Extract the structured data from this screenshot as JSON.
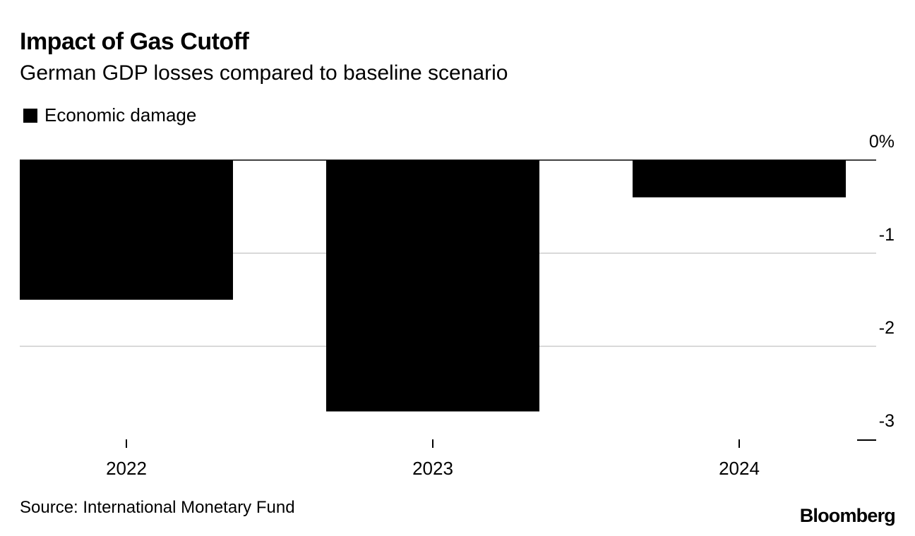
{
  "header": {
    "title": "Impact of Gas Cutoff",
    "subtitle": "German GDP losses compared to baseline scenario"
  },
  "footer": {
    "source": "Source: International Monetary Fund",
    "brand": "Bloomberg"
  },
  "colors": {
    "bar": "#000000",
    "grid": "#d9d9d9",
    "axis": "#000000"
  },
  "chart_data": {
    "type": "bar",
    "title": "Impact of Gas Cutoff",
    "subtitle": "German GDP losses compared to baseline scenario",
    "categories": [
      "2022",
      "2023",
      "2024"
    ],
    "series": [
      {
        "name": "Economic damage",
        "values": [
          -1.5,
          -2.7,
          -0.4
        ]
      }
    ],
    "xlabel": "",
    "ylabel": "",
    "ylim": [
      -3,
      0
    ],
    "yticks": [
      0,
      -1,
      -2,
      -3
    ],
    "ytick_labels": [
      "0%",
      "-1",
      "-2",
      "-3"
    ],
    "y_axis_side": "right",
    "grid": true,
    "legend": "top-left"
  }
}
